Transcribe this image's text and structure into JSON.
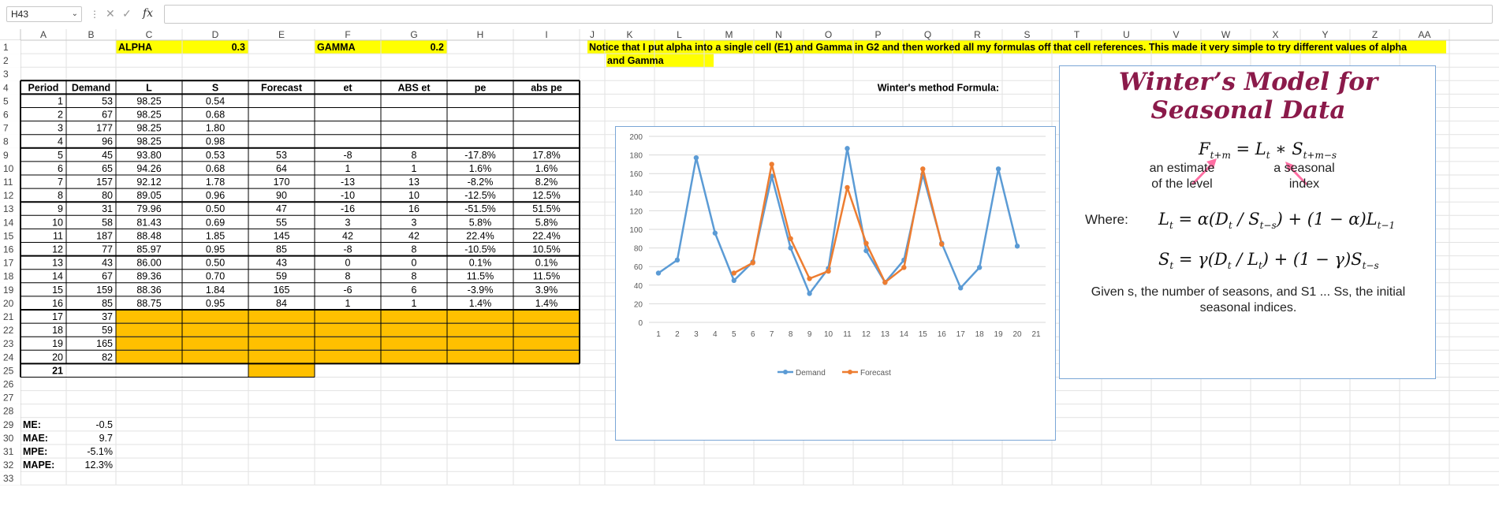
{
  "formula_bar": {
    "cell_ref": "H43",
    "fx_label": "fx",
    "value": ""
  },
  "columns": {
    "letters": [
      "A",
      "B",
      "C",
      "D",
      "E",
      "F",
      "G",
      "H",
      "I",
      "J",
      "K",
      "L",
      "M",
      "N",
      "O",
      "P",
      "Q",
      "R",
      "S",
      "T",
      "U",
      "V",
      "W",
      "X",
      "Y",
      "Z",
      "AA"
    ],
    "widths": [
      58,
      63,
      84,
      84,
      84,
      84,
      84,
      84,
      84,
      32,
      63,
      63,
      63,
      63,
      63,
      63,
      63,
      63,
      63,
      63,
      63,
      63,
      63,
      63,
      63,
      63,
      63
    ]
  },
  "row_count": 33,
  "cells": [
    {
      "r": 1,
      "c": 2,
      "v": "ALPHA",
      "a": "l",
      "fill": "#ffff00",
      "b": 1
    },
    {
      "r": 1,
      "c": 3,
      "v": "0.3",
      "a": "r",
      "fill": "#ffff00",
      "b": 1
    },
    {
      "r": 1,
      "c": 5,
      "v": "GAMMA",
      "a": "l",
      "fill": "#ffff00",
      "b": 1
    },
    {
      "r": 1,
      "c": 6,
      "v": "0.2",
      "a": "r",
      "fill": "#ffff00",
      "b": 1
    },
    {
      "r": 4,
      "c": 0,
      "v": "Period",
      "a": "c",
      "b": 1
    },
    {
      "r": 4,
      "c": 1,
      "v": "Demand",
      "a": "c",
      "b": 1
    },
    {
      "r": 4,
      "c": 2,
      "v": "L",
      "a": "c",
      "b": 1
    },
    {
      "r": 4,
      "c": 3,
      "v": "S",
      "a": "c",
      "b": 1
    },
    {
      "r": 4,
      "c": 4,
      "v": "Forecast",
      "a": "c",
      "b": 1
    },
    {
      "r": 4,
      "c": 5,
      "v": "et",
      "a": "c",
      "b": 1
    },
    {
      "r": 4,
      "c": 6,
      "v": "ABS et",
      "a": "c",
      "b": 1
    },
    {
      "r": 4,
      "c": 7,
      "v": "pe",
      "a": "c",
      "b": 1
    },
    {
      "r": 4,
      "c": 8,
      "v": "abs pe",
      "a": "c",
      "b": 1
    },
    {
      "r": 5,
      "c": 0,
      "v": "1",
      "a": "r"
    },
    {
      "r": 5,
      "c": 1,
      "v": "53",
      "a": "r"
    },
    {
      "r": 5,
      "c": 2,
      "v": "98.25",
      "a": "c"
    },
    {
      "r": 5,
      "c": 3,
      "v": "0.54",
      "a": "c"
    },
    {
      "r": 6,
      "c": 0,
      "v": "2",
      "a": "r"
    },
    {
      "r": 6,
      "c": 1,
      "v": "67",
      "a": "r"
    },
    {
      "r": 6,
      "c": 2,
      "v": "98.25",
      "a": "c"
    },
    {
      "r": 6,
      "c": 3,
      "v": "0.68",
      "a": "c"
    },
    {
      "r": 7,
      "c": 0,
      "v": "3",
      "a": "r"
    },
    {
      "r": 7,
      "c": 1,
      "v": "177",
      "a": "r"
    },
    {
      "r": 7,
      "c": 2,
      "v": "98.25",
      "a": "c"
    },
    {
      "r": 7,
      "c": 3,
      "v": "1.80",
      "a": "c"
    },
    {
      "r": 8,
      "c": 0,
      "v": "4",
      "a": "r"
    },
    {
      "r": 8,
      "c": 1,
      "v": "96",
      "a": "r"
    },
    {
      "r": 8,
      "c": 2,
      "v": "98.25",
      "a": "c"
    },
    {
      "r": 8,
      "c": 3,
      "v": "0.98",
      "a": "c"
    },
    {
      "r": 9,
      "c": 0,
      "v": "5",
      "a": "r"
    },
    {
      "r": 9,
      "c": 1,
      "v": "45",
      "a": "r"
    },
    {
      "r": 9,
      "c": 2,
      "v": "93.80",
      "a": "c"
    },
    {
      "r": 9,
      "c": 3,
      "v": "0.53",
      "a": "c"
    },
    {
      "r": 9,
      "c": 4,
      "v": "53",
      "a": "c"
    },
    {
      "r": 9,
      "c": 5,
      "v": "-8",
      "a": "c"
    },
    {
      "r": 9,
      "c": 6,
      "v": "8",
      "a": "c"
    },
    {
      "r": 9,
      "c": 7,
      "v": "-17.8%",
      "a": "c"
    },
    {
      "r": 9,
      "c": 8,
      "v": "17.8%",
      "a": "c"
    },
    {
      "r": 10,
      "c": 0,
      "v": "6",
      "a": "r"
    },
    {
      "r": 10,
      "c": 1,
      "v": "65",
      "a": "r"
    },
    {
      "r": 10,
      "c": 2,
      "v": "94.26",
      "a": "c"
    },
    {
      "r": 10,
      "c": 3,
      "v": "0.68",
      "a": "c"
    },
    {
      "r": 10,
      "c": 4,
      "v": "64",
      "a": "c"
    },
    {
      "r": 10,
      "c": 5,
      "v": "1",
      "a": "c"
    },
    {
      "r": 10,
      "c": 6,
      "v": "1",
      "a": "c"
    },
    {
      "r": 10,
      "c": 7,
      "v": "1.6%",
      "a": "c"
    },
    {
      "r": 10,
      "c": 8,
      "v": "1.6%",
      "a": "c"
    },
    {
      "r": 11,
      "c": 0,
      "v": "7",
      "a": "r"
    },
    {
      "r": 11,
      "c": 1,
      "v": "157",
      "a": "r"
    },
    {
      "r": 11,
      "c": 2,
      "v": "92.12",
      "a": "c"
    },
    {
      "r": 11,
      "c": 3,
      "v": "1.78",
      "a": "c"
    },
    {
      "r": 11,
      "c": 4,
      "v": "170",
      "a": "c"
    },
    {
      "r": 11,
      "c": 5,
      "v": "-13",
      "a": "c"
    },
    {
      "r": 11,
      "c": 6,
      "v": "13",
      "a": "c"
    },
    {
      "r": 11,
      "c": 7,
      "v": "-8.2%",
      "a": "c"
    },
    {
      "r": 11,
      "c": 8,
      "v": "8.2%",
      "a": "c"
    },
    {
      "r": 12,
      "c": 0,
      "v": "8",
      "a": "r"
    },
    {
      "r": 12,
      "c": 1,
      "v": "80",
      "a": "r"
    },
    {
      "r": 12,
      "c": 2,
      "v": "89.05",
      "a": "c"
    },
    {
      "r": 12,
      "c": 3,
      "v": "0.96",
      "a": "c"
    },
    {
      "r": 12,
      "c": 4,
      "v": "90",
      "a": "c"
    },
    {
      "r": 12,
      "c": 5,
      "v": "-10",
      "a": "c"
    },
    {
      "r": 12,
      "c": 6,
      "v": "10",
      "a": "c"
    },
    {
      "r": 12,
      "c": 7,
      "v": "-12.5%",
      "a": "c"
    },
    {
      "r": 12,
      "c": 8,
      "v": "12.5%",
      "a": "c"
    },
    {
      "r": 13,
      "c": 0,
      "v": "9",
      "a": "r"
    },
    {
      "r": 13,
      "c": 1,
      "v": "31",
      "a": "r"
    },
    {
      "r": 13,
      "c": 2,
      "v": "79.96",
      "a": "c"
    },
    {
      "r": 13,
      "c": 3,
      "v": "0.50",
      "a": "c"
    },
    {
      "r": 13,
      "c": 4,
      "v": "47",
      "a": "c"
    },
    {
      "r": 13,
      "c": 5,
      "v": "-16",
      "a": "c"
    },
    {
      "r": 13,
      "c": 6,
      "v": "16",
      "a": "c"
    },
    {
      "r": 13,
      "c": 7,
      "v": "-51.5%",
      "a": "c"
    },
    {
      "r": 13,
      "c": 8,
      "v": "51.5%",
      "a": "c"
    },
    {
      "r": 14,
      "c": 0,
      "v": "10",
      "a": "r"
    },
    {
      "r": 14,
      "c": 1,
      "v": "58",
      "a": "r"
    },
    {
      "r": 14,
      "c": 2,
      "v": "81.43",
      "a": "c"
    },
    {
      "r": 14,
      "c": 3,
      "v": "0.69",
      "a": "c"
    },
    {
      "r": 14,
      "c": 4,
      "v": "55",
      "a": "c"
    },
    {
      "r": 14,
      "c": 5,
      "v": "3",
      "a": "c"
    },
    {
      "r": 14,
      "c": 6,
      "v": "3",
      "a": "c"
    },
    {
      "r": 14,
      "c": 7,
      "v": "5.8%",
      "a": "c"
    },
    {
      "r": 14,
      "c": 8,
      "v": "5.8%",
      "a": "c"
    },
    {
      "r": 15,
      "c": 0,
      "v": "11",
      "a": "r"
    },
    {
      "r": 15,
      "c": 1,
      "v": "187",
      "a": "r"
    },
    {
      "r": 15,
      "c": 2,
      "v": "88.48",
      "a": "c"
    },
    {
      "r": 15,
      "c": 3,
      "v": "1.85",
      "a": "c"
    },
    {
      "r": 15,
      "c": 4,
      "v": "145",
      "a": "c"
    },
    {
      "r": 15,
      "c": 5,
      "v": "42",
      "a": "c"
    },
    {
      "r": 15,
      "c": 6,
      "v": "42",
      "a": "c"
    },
    {
      "r": 15,
      "c": 7,
      "v": "22.4%",
      "a": "c"
    },
    {
      "r": 15,
      "c": 8,
      "v": "22.4%",
      "a": "c"
    },
    {
      "r": 16,
      "c": 0,
      "v": "12",
      "a": "r"
    },
    {
      "r": 16,
      "c": 1,
      "v": "77",
      "a": "r"
    },
    {
      "r": 16,
      "c": 2,
      "v": "85.97",
      "a": "c"
    },
    {
      "r": 16,
      "c": 3,
      "v": "0.95",
      "a": "c"
    },
    {
      "r": 16,
      "c": 4,
      "v": "85",
      "a": "c"
    },
    {
      "r": 16,
      "c": 5,
      "v": "-8",
      "a": "c"
    },
    {
      "r": 16,
      "c": 6,
      "v": "8",
      "a": "c"
    },
    {
      "r": 16,
      "c": 7,
      "v": "-10.5%",
      "a": "c"
    },
    {
      "r": 16,
      "c": 8,
      "v": "10.5%",
      "a": "c"
    },
    {
      "r": 17,
      "c": 0,
      "v": "13",
      "a": "r"
    },
    {
      "r": 17,
      "c": 1,
      "v": "43",
      "a": "r"
    },
    {
      "r": 17,
      "c": 2,
      "v": "86.00",
      "a": "c"
    },
    {
      "r": 17,
      "c": 3,
      "v": "0.50",
      "a": "c"
    },
    {
      "r": 17,
      "c": 4,
      "v": "43",
      "a": "c"
    },
    {
      "r": 17,
      "c": 5,
      "v": "0",
      "a": "c"
    },
    {
      "r": 17,
      "c": 6,
      "v": "0",
      "a": "c"
    },
    {
      "r": 17,
      "c": 7,
      "v": "0.1%",
      "a": "c"
    },
    {
      "r": 17,
      "c": 8,
      "v": "0.1%",
      "a": "c"
    },
    {
      "r": 18,
      "c": 0,
      "v": "14",
      "a": "r"
    },
    {
      "r": 18,
      "c": 1,
      "v": "67",
      "a": "r"
    },
    {
      "r": 18,
      "c": 2,
      "v": "89.36",
      "a": "c"
    },
    {
      "r": 18,
      "c": 3,
      "v": "0.70",
      "a": "c"
    },
    {
      "r": 18,
      "c": 4,
      "v": "59",
      "a": "c"
    },
    {
      "r": 18,
      "c": 5,
      "v": "8",
      "a": "c"
    },
    {
      "r": 18,
      "c": 6,
      "v": "8",
      "a": "c"
    },
    {
      "r": 18,
      "c": 7,
      "v": "11.5%",
      "a": "c"
    },
    {
      "r": 18,
      "c": 8,
      "v": "11.5%",
      "a": "c"
    },
    {
      "r": 19,
      "c": 0,
      "v": "15",
      "a": "r"
    },
    {
      "r": 19,
      "c": 1,
      "v": "159",
      "a": "r"
    },
    {
      "r": 19,
      "c": 2,
      "v": "88.36",
      "a": "c"
    },
    {
      "r": 19,
      "c": 3,
      "v": "1.84",
      "a": "c"
    },
    {
      "r": 19,
      "c": 4,
      "v": "165",
      "a": "c"
    },
    {
      "r": 19,
      "c": 5,
      "v": "-6",
      "a": "c"
    },
    {
      "r": 19,
      "c": 6,
      "v": "6",
      "a": "c"
    },
    {
      "r": 19,
      "c": 7,
      "v": "-3.9%",
      "a": "c"
    },
    {
      "r": 19,
      "c": 8,
      "v": "3.9%",
      "a": "c"
    },
    {
      "r": 20,
      "c": 0,
      "v": "16",
      "a": "r"
    },
    {
      "r": 20,
      "c": 1,
      "v": "85",
      "a": "r"
    },
    {
      "r": 20,
      "c": 2,
      "v": "88.75",
      "a": "c"
    },
    {
      "r": 20,
      "c": 3,
      "v": "0.95",
      "a": "c"
    },
    {
      "r": 20,
      "c": 4,
      "v": "84",
      "a": "c"
    },
    {
      "r": 20,
      "c": 5,
      "v": "1",
      "a": "c"
    },
    {
      "r": 20,
      "c": 6,
      "v": "1",
      "a": "c"
    },
    {
      "r": 20,
      "c": 7,
      "v": "1.4%",
      "a": "c"
    },
    {
      "r": 20,
      "c": 8,
      "v": "1.4%",
      "a": "c"
    },
    {
      "r": 21,
      "c": 0,
      "v": "17",
      "a": "r"
    },
    {
      "r": 21,
      "c": 1,
      "v": "37",
      "a": "r"
    },
    {
      "r": 22,
      "c": 0,
      "v": "18",
      "a": "r"
    },
    {
      "r": 22,
      "c": 1,
      "v": "59",
      "a": "r"
    },
    {
      "r": 23,
      "c": 0,
      "v": "19",
      "a": "r"
    },
    {
      "r": 23,
      "c": 1,
      "v": "165",
      "a": "r"
    },
    {
      "r": 24,
      "c": 0,
      "v": "20",
      "a": "r"
    },
    {
      "r": 24,
      "c": 1,
      "v": "82",
      "a": "r"
    },
    {
      "r": 25,
      "c": 0,
      "v": "21",
      "a": "r",
      "b": 1
    },
    {
      "r": 29,
      "c": 0,
      "v": "ME:",
      "a": "l",
      "b": 1
    },
    {
      "r": 29,
      "c": 1,
      "v": "-0.5",
      "a": "r"
    },
    {
      "r": 30,
      "c": 0,
      "v": "MAE:",
      "a": "l",
      "b": 1
    },
    {
      "r": 30,
      "c": 1,
      "v": "9.7",
      "a": "r"
    },
    {
      "r": 31,
      "c": 0,
      "v": "MPE:",
      "a": "l",
      "b": 1
    },
    {
      "r": 31,
      "c": 1,
      "v": "-5.1%",
      "a": "r"
    },
    {
      "r": 32,
      "c": 0,
      "v": "MAPE:",
      "a": "l",
      "b": 1
    },
    {
      "r": 32,
      "c": 1,
      "v": "12.3%",
      "a": "r"
    },
    {
      "r": 4,
      "c": 17,
      "v": "Winter's method Formula:",
      "a": "r",
      "b": 1
    }
  ],
  "orange_fill": "#ffc000",
  "yellow_fill": "#ffff00",
  "note": {
    "line1": "Notice that I put alpha into a single cell (E1) and Gamma in G2 and then worked all my formulas off that cell references.  This made it very simple to try different values of alpha",
    "line2": "and Gamma"
  },
  "chart_data": {
    "type": "line",
    "x": [
      1,
      2,
      3,
      4,
      5,
      6,
      7,
      8,
      9,
      10,
      11,
      12,
      13,
      14,
      15,
      16,
      17,
      18,
      19,
      20,
      21
    ],
    "y_ticks": [
      0,
      20,
      40,
      60,
      80,
      100,
      120,
      140,
      160,
      180,
      200
    ],
    "ylim": [
      0,
      200
    ],
    "series": [
      {
        "name": "Demand",
        "color": "#5b9bd5",
        "values": [
          53,
          67,
          177,
          96,
          45,
          65,
          157,
          80,
          31,
          58,
          187,
          77,
          43,
          67,
          159,
          85,
          37,
          59,
          165,
          82,
          null
        ]
      },
      {
        "name": "Forecast",
        "color": "#ed7d31",
        "values": [
          null,
          null,
          null,
          null,
          53,
          64,
          170,
          90,
          47,
          55,
          145,
          85,
          43,
          59,
          165,
          84,
          null,
          null,
          null,
          null,
          null
        ]
      }
    ],
    "legend_position": "bottom"
  },
  "model_box": {
    "title": "Winter’s Model for Seasonal Data",
    "level_note_1": "an estimate",
    "level_note_2": "of the level",
    "index_note_1": "a seasonal",
    "index_note_2": "index",
    "where_label": "Where:",
    "given_text_1": "Given s, the number of seasons, and S1 ... Ss, the initial",
    "given_text_2": "seasonal indices.",
    "arrow_color": "#ff6fa3",
    "title_color": "#8b1a4a"
  }
}
